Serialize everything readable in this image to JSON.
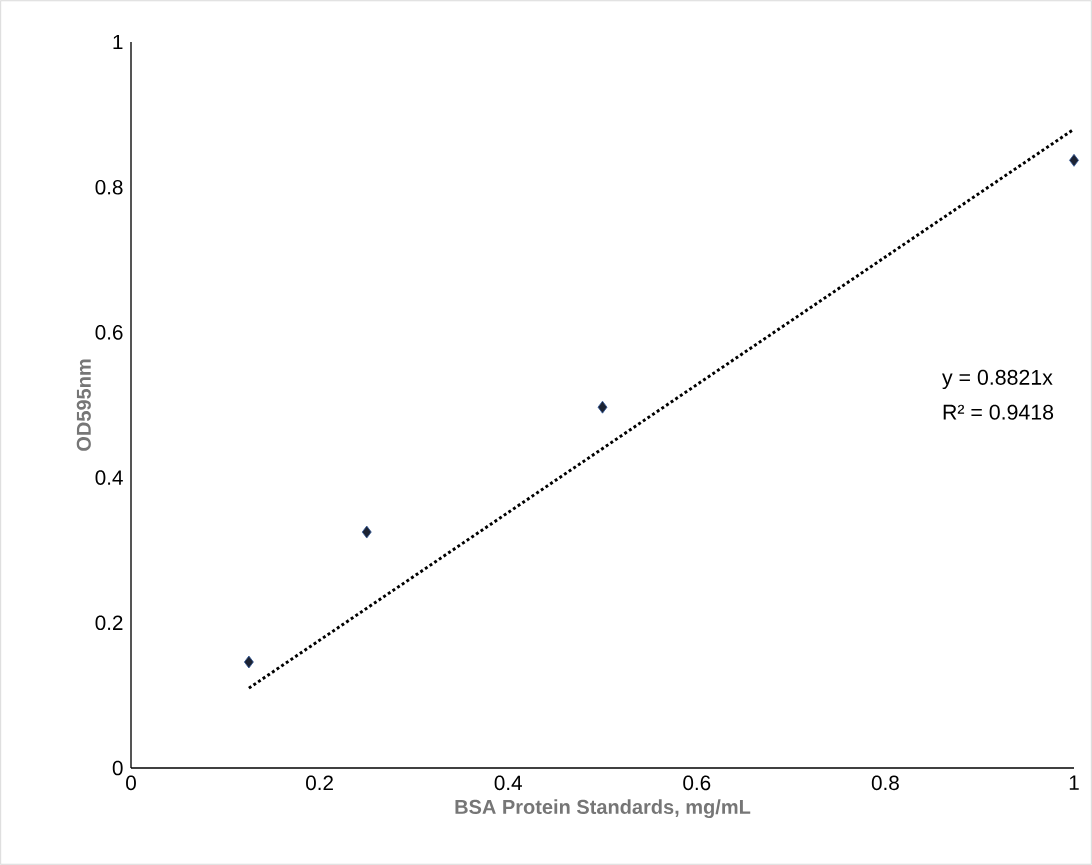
{
  "chart_data": {
    "type": "scatter",
    "xlabel": "BSA Protein Standards, mg/mL",
    "ylabel": "OD595nm",
    "xlim": [
      0,
      1
    ],
    "ylim": [
      0,
      1
    ],
    "xticks": [
      0,
      0.2,
      0.4,
      0.6,
      0.8,
      1
    ],
    "yticks": [
      0,
      0.2,
      0.4,
      0.6,
      0.8,
      1
    ],
    "series": [
      {
        "color": "#1c2333",
        "marker": "diamond",
        "x": [
          0.125,
          0.25,
          0.5,
          1
        ],
        "values": [
          0.146,
          0.325,
          0.497,
          0.837
        ]
      },
      {
        "type": "line",
        "color": "#000000",
        "marker": "none",
        "line_style": "dotted",
        "x": [
          0.125,
          1
        ],
        "values": [
          0.11,
          0.88
        ]
      }
    ],
    "annotations": [
      "y = 0.8821x",
      "R² = 0.9418"
    ]
  }
}
